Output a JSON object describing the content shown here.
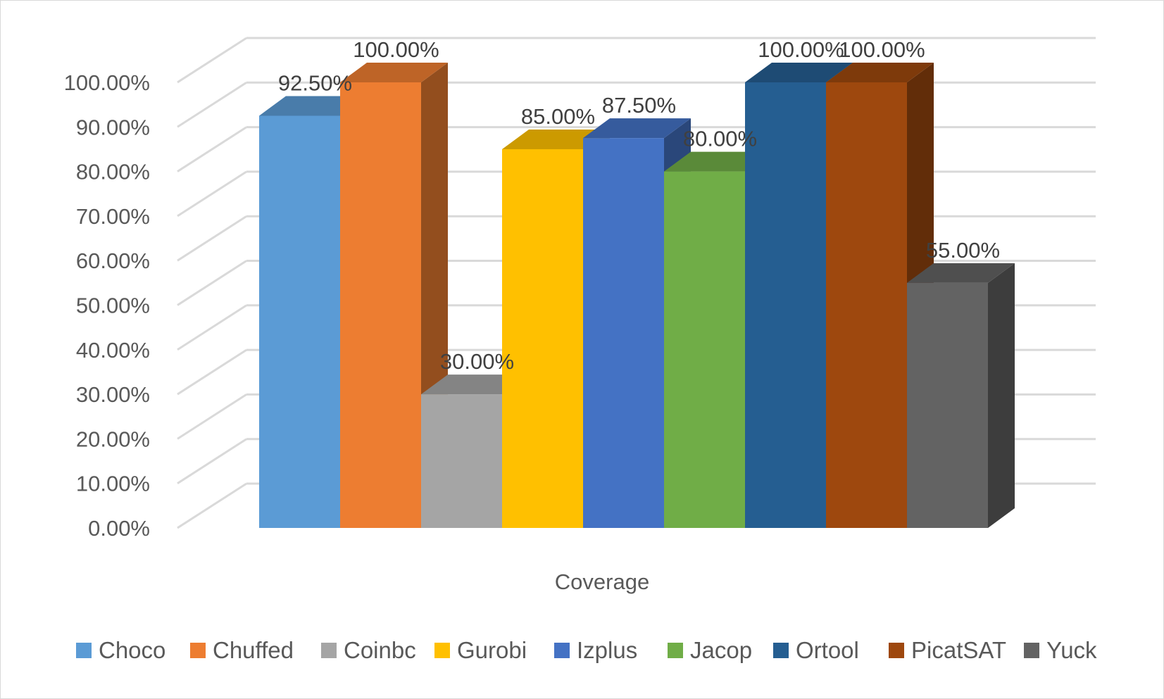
{
  "chart_data": {
    "type": "bar",
    "style": "3d-clustered-column",
    "categories": [
      "Coverage"
    ],
    "series": [
      {
        "name": "Choco",
        "values": [
          92.5
        ],
        "label": "92.50%",
        "color": "#5B9BD5"
      },
      {
        "name": "Chuffed",
        "values": [
          100
        ],
        "label": "100.00%",
        "color": "#ED7D31"
      },
      {
        "name": "Coinbc",
        "values": [
          30
        ],
        "label": "30.00%",
        "color": "#A5A5A5"
      },
      {
        "name": "Gurobi",
        "values": [
          85
        ],
        "label": "85.00%",
        "color": "#FFC000"
      },
      {
        "name": "Izplus",
        "values": [
          87.5
        ],
        "label": "87.50%",
        "color": "#4472C4"
      },
      {
        "name": "Jacop",
        "values": [
          80
        ],
        "label": "80.00%",
        "color": "#70AD47"
      },
      {
        "name": "Ortool",
        "values": [
          100
        ],
        "label": "100.00%",
        "color": "#255E91"
      },
      {
        "name": "PicatSAT",
        "values": [
          100
        ],
        "label": "100.00%",
        "color": "#9E480E"
      },
      {
        "name": "Yuck",
        "values": [
          55
        ],
        "label": "55.00%",
        "color": "#636363"
      }
    ],
    "y_ticks": [
      "0.00%",
      "10.00%",
      "20.00%",
      "30.00%",
      "40.00%",
      "50.00%",
      "60.00%",
      "70.00%",
      "80.00%",
      "90.00%",
      "100.00%"
    ],
    "ylim": [
      0,
      100
    ],
    "grid": true,
    "legend_position": "bottom",
    "title": "",
    "xlabel": "",
    "ylabel": ""
  }
}
